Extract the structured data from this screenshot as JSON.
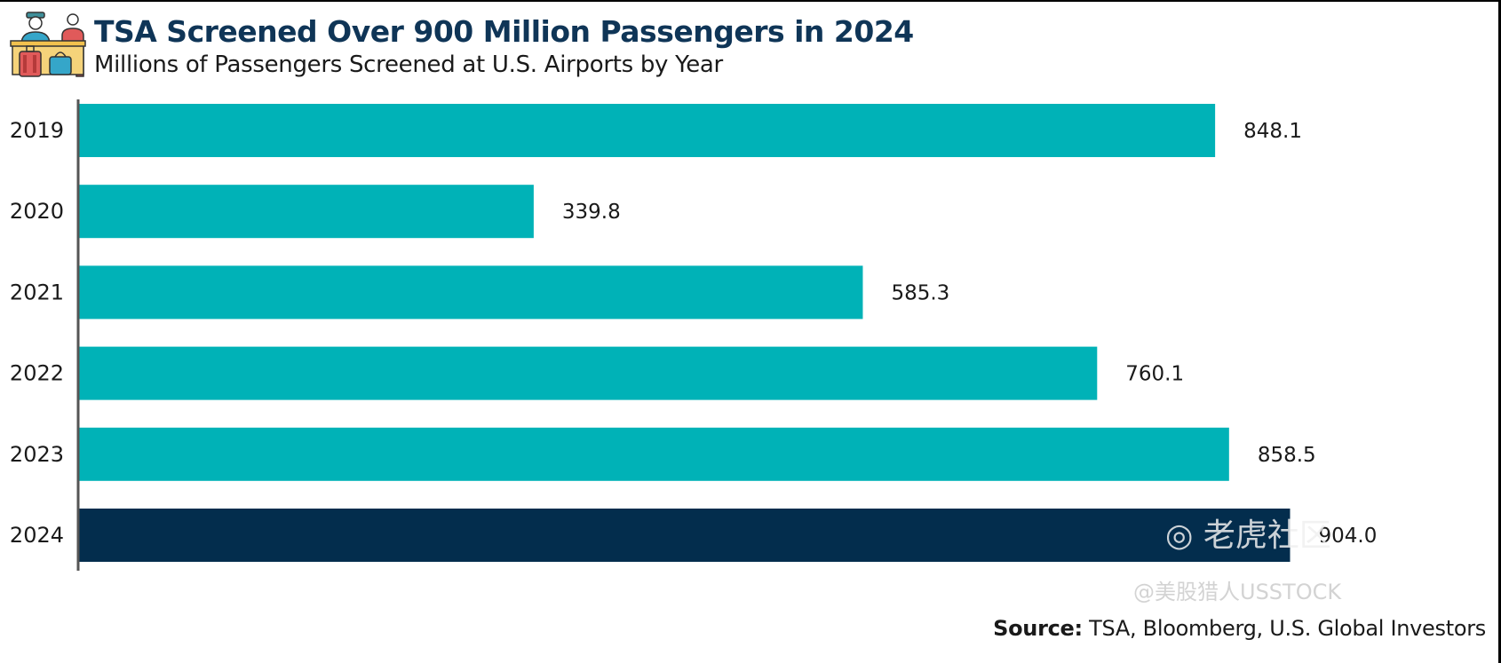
{
  "header": {
    "title": "TSA Screened Over 900 Million Passengers in 2024",
    "subtitle": "Millions of Passengers Screened at U.S. Airports by Year",
    "icon": "airport-security-checkpoint-icon"
  },
  "footer": {
    "source_label": "Source:",
    "source_text": " TSA, Bloomberg, U.S. Global Investors"
  },
  "watermark": {
    "logo_text": "老虎社区",
    "handle_text": "@美股猎人USSTOCK"
  },
  "colors": {
    "bar_default": "#00b2b7",
    "bar_highlight": "#032d4d",
    "axis": "#555555",
    "label": "#1a1a1a",
    "title": "#0f3557"
  },
  "chart_data": {
    "type": "bar",
    "orientation": "horizontal",
    "title": "TSA Screened Over 900 Million Passengers in 2024",
    "subtitle": "Millions of Passengers Screened at U.S. Airports by Year",
    "xlabel": "",
    "ylabel": "",
    "categories": [
      "2019",
      "2020",
      "2021",
      "2022",
      "2023",
      "2024"
    ],
    "values": [
      848.1,
      339.8,
      585.3,
      760.1,
      858.5,
      904.0
    ],
    "value_labels": [
      "848.1",
      "339.8",
      "585.3",
      "760.1",
      "858.5",
      "904.0"
    ],
    "highlight_category": "2024",
    "xlim": [
      0,
      1000
    ],
    "grid": false,
    "legend": "none",
    "source": "Source: TSA, Bloomberg, U.S. Global Investors"
  }
}
